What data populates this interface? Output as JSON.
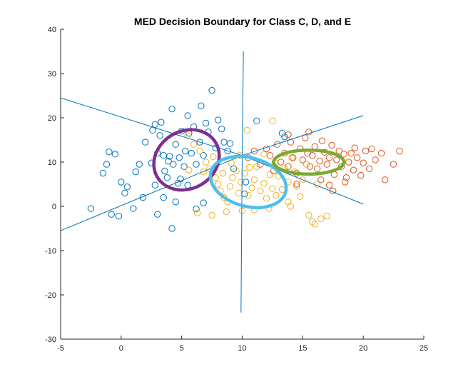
{
  "chart_data": {
    "type": "scatter",
    "title": "MED Decision Boundary for Class C, D, and E",
    "xlabel": "",
    "ylabel": "",
    "xlim": [
      -5,
      25
    ],
    "ylim": [
      -30,
      40
    ],
    "xticks": [
      "-5",
      "0",
      "5",
      "10",
      "15",
      "20",
      "25"
    ],
    "yticks": [
      "40",
      "30",
      "20",
      "10",
      "0",
      "-10",
      "-20",
      "-30"
    ],
    "grid": false,
    "colors": {
      "class_c": "#0072BD",
      "class_d": "#EDB120",
      "class_e": "#D95319",
      "boundary": "#0072BD",
      "ellipse_c": "#7E2F8E",
      "ellipse_d": "#4DBEEE",
      "ellipse_e": "#77AC30"
    },
    "series": [
      {
        "key": "class_c",
        "marker": "circle-open",
        "points": [
          [
            -2.5,
            -0.5
          ],
          [
            -1,
            12.3
          ],
          [
            -0.5,
            11.8
          ],
          [
            -1.2,
            9.5
          ],
          [
            -1.5,
            7.5
          ],
          [
            -0.8,
            -1.8
          ],
          [
            -0.2,
            -2.2
          ],
          [
            0,
            5.5
          ],
          [
            0.5,
            4.4
          ],
          [
            1,
            -0.5
          ],
          [
            1.2,
            7.8
          ],
          [
            1.5,
            9.5
          ],
          [
            1.8,
            2
          ],
          [
            2,
            14.5
          ],
          [
            2.5,
            9.8
          ],
          [
            2.6,
            17.2
          ],
          [
            2.8,
            18.5
          ],
          [
            3,
            12
          ],
          [
            3.2,
            16
          ],
          [
            3.3,
            19
          ],
          [
            3.5,
            11.5
          ],
          [
            3.6,
            8
          ],
          [
            3.8,
            6.5
          ],
          [
            4,
            11.3
          ],
          [
            4.2,
            22
          ],
          [
            4.3,
            9.5
          ],
          [
            4.5,
            14
          ],
          [
            4.7,
            5.2
          ],
          [
            4.8,
            11
          ],
          [
            5,
            17
          ],
          [
            5.2,
            9
          ],
          [
            5.5,
            20.5
          ],
          [
            5.6,
            16.5
          ],
          [
            5.8,
            12
          ],
          [
            6,
            18
          ],
          [
            6.2,
            9.5
          ],
          [
            6.5,
            14.5
          ],
          [
            6.6,
            22.7
          ],
          [
            7,
            18.8
          ],
          [
            7.2,
            16.8
          ],
          [
            7.5,
            26.2
          ],
          [
            7.8,
            13.2
          ],
          [
            8,
            19.5
          ],
          [
            8.3,
            17.5
          ],
          [
            8.5,
            14.5
          ],
          [
            3,
            -1.8
          ],
          [
            4.2,
            -5
          ],
          [
            6.2,
            -0.6
          ],
          [
            6.8,
            0.8
          ],
          [
            0.3,
            3
          ],
          [
            2.8,
            4.8
          ],
          [
            3.5,
            2
          ],
          [
            4.5,
            1
          ],
          [
            5.3,
            12.5
          ],
          [
            3.9,
            10.2
          ],
          [
            6.8,
            11.5
          ],
          [
            8.8,
            12.5
          ],
          [
            9.3,
            8.5
          ],
          [
            10.2,
            2.8
          ],
          [
            10.3,
            5.5
          ],
          [
            11.2,
            19.3
          ],
          [
            13.3,
            16.5
          ],
          [
            13.5,
            15.7
          ],
          [
            9,
            14.2
          ],
          [
            5.5,
            4.8
          ],
          [
            4.9,
            6.2
          ]
        ]
      },
      {
        "key": "class_d",
        "marker": "circle-open",
        "points": [
          [
            5.5,
            16
          ],
          [
            6,
            14
          ],
          [
            6.5,
            12.5
          ],
          [
            7,
            10
          ],
          [
            7.3,
            8.5
          ],
          [
            7.8,
            6.5
          ],
          [
            8,
            5
          ],
          [
            8.2,
            3.5
          ],
          [
            8.5,
            2
          ],
          [
            8.8,
            1
          ],
          [
            9,
            4.5
          ],
          [
            9.2,
            6.5
          ],
          [
            9.5,
            8
          ],
          [
            9.7,
            3
          ],
          [
            9.9,
            5.5
          ],
          [
            10.2,
            7.5
          ],
          [
            10.5,
            2.5
          ],
          [
            10.8,
            4.2
          ],
          [
            11,
            6
          ],
          [
            11.2,
            9
          ],
          [
            11.5,
            3.5
          ],
          [
            11.8,
            5.2
          ],
          [
            12,
            1.8
          ],
          [
            12.3,
            7.2
          ],
          [
            12.5,
            4
          ],
          [
            12.8,
            2.5
          ],
          [
            13,
            6.8
          ],
          [
            13.3,
            3.8
          ],
          [
            13.5,
            8.5
          ],
          [
            13.8,
            5.5
          ],
          [
            14,
            0
          ],
          [
            14.3,
            7.8
          ],
          [
            14.5,
            4.5
          ],
          [
            14.8,
            2.2
          ],
          [
            15,
            6
          ],
          [
            15.3,
            9.5
          ],
          [
            15.5,
            -2
          ],
          [
            15.8,
            -3.5
          ],
          [
            16,
            -4
          ],
          [
            16.5,
            -2.8
          ],
          [
            17,
            -2.2
          ],
          [
            10,
            -1
          ],
          [
            11,
            -0.8
          ],
          [
            12.2,
            -0.5
          ],
          [
            7.5,
            -2
          ],
          [
            6.3,
            -1.5
          ],
          [
            8.7,
            -1.2
          ],
          [
            13.8,
            1
          ],
          [
            16.2,
            5
          ],
          [
            9.8,
            11.5
          ],
          [
            11.8,
            11.8
          ],
          [
            12.5,
            19.3
          ],
          [
            10.4,
            17.2
          ],
          [
            7.6,
            11.2
          ],
          [
            8.4,
            7.5
          ],
          [
            10.6,
            8.8
          ],
          [
            12.7,
            9.8
          ],
          [
            14.1,
            11
          ],
          [
            9.1,
            9.8
          ],
          [
            6.8,
            7.8
          ],
          [
            5.6,
            8.2
          ]
        ]
      },
      {
        "key": "class_e",
        "marker": "circle-open",
        "points": [
          [
            10.5,
            11
          ],
          [
            11,
            12.5
          ],
          [
            11.5,
            9.5
          ],
          [
            12,
            13
          ],
          [
            12.3,
            11.5
          ],
          [
            12.6,
            8
          ],
          [
            12.9,
            14
          ],
          [
            13.2,
            10
          ],
          [
            13.5,
            12
          ],
          [
            13.8,
            9
          ],
          [
            14,
            14.5
          ],
          [
            14.2,
            11
          ],
          [
            14.5,
            7.5
          ],
          [
            14.8,
            13
          ],
          [
            15,
            10.5
          ],
          [
            15.2,
            15.5
          ],
          [
            15.4,
            12
          ],
          [
            15.6,
            9
          ],
          [
            15.8,
            11.5
          ],
          [
            16,
            13.5
          ],
          [
            16.2,
            8.5
          ],
          [
            16.4,
            10.2
          ],
          [
            16.6,
            14.8
          ],
          [
            16.8,
            12.2
          ],
          [
            17,
            9.5
          ],
          [
            17.2,
            11
          ],
          [
            17.4,
            13.8
          ],
          [
            17.6,
            7.2
          ],
          [
            17.8,
            10.5
          ],
          [
            18,
            12.5
          ],
          [
            18.2,
            9
          ],
          [
            18.4,
            11.8
          ],
          [
            18.6,
            6.5
          ],
          [
            18.8,
            10
          ],
          [
            19,
            12
          ],
          [
            19.2,
            8.2
          ],
          [
            19.5,
            11
          ],
          [
            19.8,
            7
          ],
          [
            20,
            9.8
          ],
          [
            20.2,
            12.5
          ],
          [
            20.5,
            8.5
          ],
          [
            21,
            10.5
          ],
          [
            21.5,
            12
          ],
          [
            21.8,
            6
          ],
          [
            22.5,
            9.5
          ],
          [
            23,
            12.5
          ],
          [
            17.5,
            3.5
          ],
          [
            17.2,
            4.8
          ],
          [
            18.5,
            5.5
          ],
          [
            16.5,
            6
          ],
          [
            14.5,
            5
          ],
          [
            13.8,
            16.2
          ],
          [
            15.5,
            16.8
          ],
          [
            19.3,
            13.2
          ],
          [
            20.7,
            13
          ]
        ]
      }
    ],
    "ellipses": [
      {
        "key": "ellipse_c",
        "cx": 5.4,
        "cy": 10.5,
        "rx": 2.8,
        "ry": 6.5,
        "angle_deg": -30
      },
      {
        "key": "ellipse_d",
        "cx": 10.5,
        "cy": 5.5,
        "rx": 3.2,
        "ry": 5.5,
        "angle_deg": 15
      },
      {
        "key": "ellipse_e",
        "cx": 15.5,
        "cy": 10,
        "rx": 2.9,
        "ry": 2.7,
        "angle_deg": 0
      }
    ],
    "boundary_lines": [
      {
        "key": "boundary",
        "from": [
          -5,
          24.5
        ],
        "to": [
          10,
          11.5
        ]
      },
      {
        "key": "boundary",
        "from": [
          -5,
          -5.5
        ],
        "to": [
          10,
          11.5
        ]
      },
      {
        "key": "boundary",
        "from": [
          10,
          11.5
        ],
        "to": [
          20,
          20.5
        ]
      },
      {
        "key": "boundary",
        "from": [
          10,
          11.5
        ],
        "to": [
          20,
          0.5
        ]
      },
      {
        "key": "boundary",
        "from": [
          10.1,
          35
        ],
        "to": [
          10,
          11.5
        ]
      },
      {
        "key": "boundary",
        "from": [
          10,
          11.5
        ],
        "to": [
          9.9,
          -24
        ]
      }
    ]
  }
}
